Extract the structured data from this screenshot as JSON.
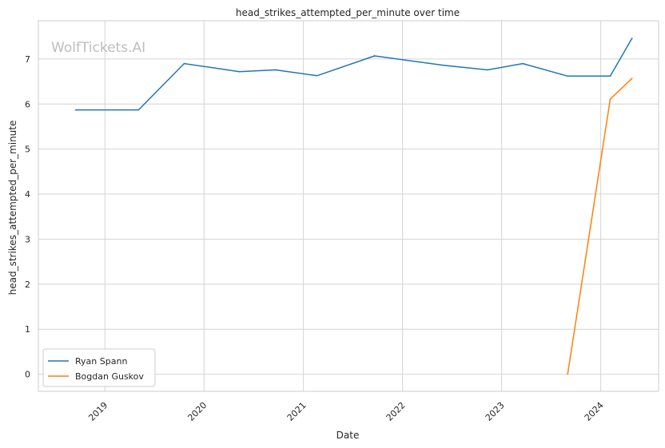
{
  "chart_data": {
    "type": "line",
    "title": "head_strikes_attempted_per_minute over time",
    "xlabel": "Date",
    "ylabel": "head_strikes_attempted_per_minute",
    "x_axis_type": "date",
    "xlim": [
      "2018-05-01",
      "2024-08-01"
    ],
    "ylim": [
      -0.38,
      7.85
    ],
    "x_ticks": [
      "2019",
      "2020",
      "2021",
      "2022",
      "2023",
      "2024"
    ],
    "x_tick_dates": [
      "2019-01-01",
      "2020-01-01",
      "2021-01-01",
      "2022-01-01",
      "2023-01-01",
      "2024-01-01"
    ],
    "y_ticks": [
      0,
      1,
      2,
      3,
      4,
      5,
      6,
      7
    ],
    "grid": true,
    "legend_position": "bottom-left",
    "watermark": "WolfTickets.AI",
    "series": [
      {
        "name": "Ryan Spann",
        "color": "#1f77b4",
        "points": [
          {
            "x": "2018-09-15",
            "y": 5.87
          },
          {
            "x": "2019-05-05",
            "y": 5.87
          },
          {
            "x": "2019-10-20",
            "y": 6.9
          },
          {
            "x": "2020-05-10",
            "y": 6.72
          },
          {
            "x": "2020-09-20",
            "y": 6.76
          },
          {
            "x": "2021-02-20",
            "y": 6.63
          },
          {
            "x": "2021-09-20",
            "y": 7.07
          },
          {
            "x": "2022-06-01",
            "y": 6.86
          },
          {
            "x": "2022-11-10",
            "y": 6.76
          },
          {
            "x": "2023-03-20",
            "y": 6.9
          },
          {
            "x": "2023-09-01",
            "y": 6.62
          },
          {
            "x": "2024-02-05",
            "y": 6.62
          },
          {
            "x": "2024-04-25",
            "y": 7.46
          }
        ]
      },
      {
        "name": "Bogdan Guskov",
        "color": "#ff7f0e",
        "points": [
          {
            "x": "2023-09-01",
            "y": 0.0
          },
          {
            "x": "2024-02-05",
            "y": 6.11
          },
          {
            "x": "2024-04-25",
            "y": 6.57
          }
        ]
      }
    ]
  }
}
